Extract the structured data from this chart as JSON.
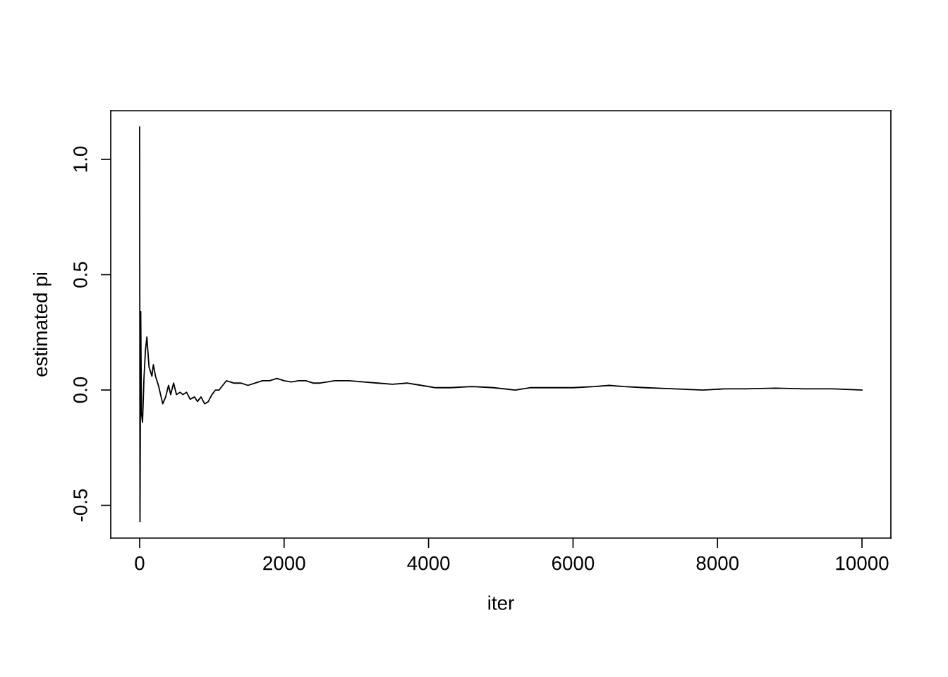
{
  "chart_data": {
    "type": "line",
    "xlabel": "iter",
    "ylabel": "estimated pi",
    "x": [
      0,
      5,
      15,
      25,
      40,
      60,
      80,
      100,
      130,
      150,
      170,
      190,
      220,
      260,
      320,
      360,
      400,
      430,
      470,
      510,
      560,
      600,
      650,
      700,
      760,
      800,
      850,
      900,
      950,
      1000,
      1050,
      1100,
      1150,
      1200,
      1300,
      1400,
      1500,
      1600,
      1700,
      1800,
      1900,
      2000,
      2100,
      2200,
      2300,
      2400,
      2500,
      2700,
      2900,
      3100,
      3300,
      3500,
      3700,
      3900,
      4100,
      4300,
      4600,
      4900,
      5200,
      5400,
      5700,
      6000,
      6300,
      6500,
      6700,
      7000,
      7400,
      7800,
      8100,
      8400,
      8800,
      9200,
      9600,
      10000
    ],
    "series": [
      {
        "color": "#000000",
        "values": [
          1.14,
          -0.57,
          0.34,
          -0.1,
          -0.14,
          0.05,
          0.17,
          0.23,
          0.1,
          0.08,
          0.06,
          0.11,
          0.06,
          0.02,
          -0.06,
          -0.03,
          0.02,
          -0.02,
          0.03,
          -0.02,
          -0.01,
          -0.02,
          -0.01,
          -0.04,
          -0.03,
          -0.05,
          -0.03,
          -0.06,
          -0.05,
          -0.02,
          0.0,
          0.0,
          0.02,
          0.04,
          0.03,
          0.03,
          0.02,
          0.03,
          0.04,
          0.04,
          0.05,
          0.04,
          0.035,
          0.04,
          0.04,
          0.03,
          0.03,
          0.04,
          0.04,
          0.035,
          0.03,
          0.025,
          0.03,
          0.02,
          0.01,
          0.01,
          0.015,
          0.01,
          0.0,
          0.01,
          0.01,
          0.01,
          0.015,
          0.02,
          0.015,
          0.01,
          0.005,
          0.0,
          0.005,
          0.005,
          0.008,
          0.005,
          0.005,
          0.0
        ]
      }
    ],
    "xlim": [
      -400,
      10400
    ],
    "ylim": [
      -0.642,
      1.211
    ],
    "xticks": [
      0,
      2000,
      4000,
      6000,
      8000,
      10000
    ],
    "yticks": [
      {
        "value": -0.5,
        "label": "-0.5"
      },
      {
        "value": 0,
        "label": "0.0"
      },
      {
        "value": 0.5,
        "label": "0.5"
      },
      {
        "value": 1,
        "label": "1.0"
      }
    ],
    "grid": false,
    "legend": false,
    "line_style": "solid",
    "marker": "none"
  }
}
